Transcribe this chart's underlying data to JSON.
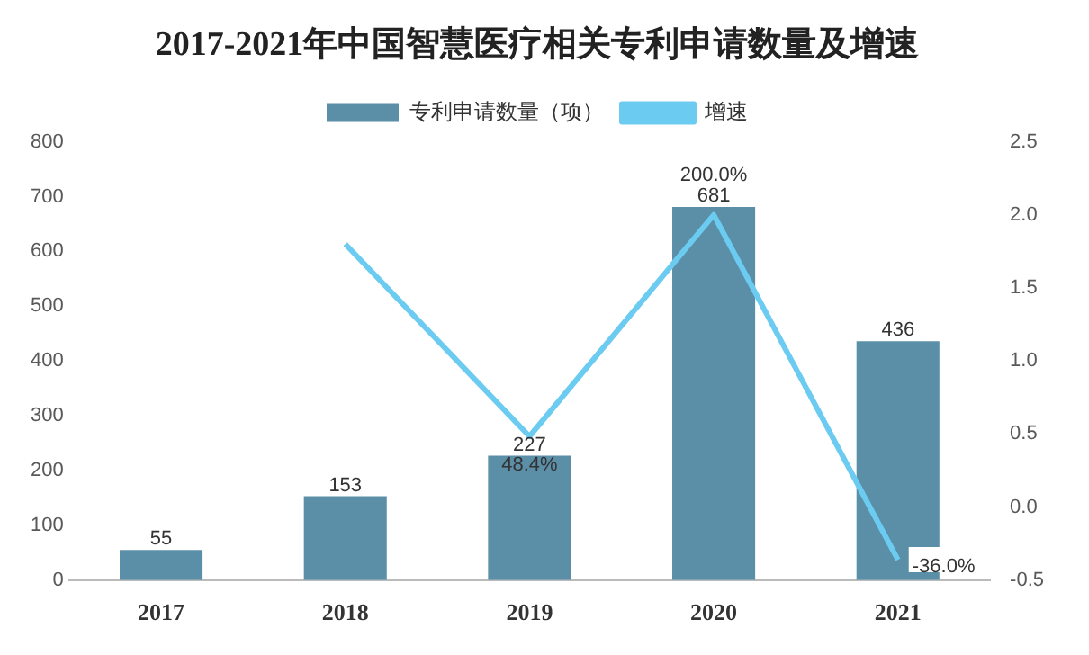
{
  "chart_data": {
    "type": "bar",
    "title": "2017-2021年中国智慧医疗相关专利申请数量及增速",
    "categories": [
      "2017",
      "2018",
      "2019",
      "2020",
      "2021"
    ],
    "series": [
      {
        "name": "专利申请数量（项）",
        "color": "#5b8fa8",
        "values": [
          55,
          153,
          227,
          681,
          436
        ],
        "data_labels": true
      },
      {
        "name": "增速",
        "type": "line",
        "axis": "y2",
        "color": "#6ccbf0",
        "values": [
          null,
          1.8,
          0.484,
          2.0,
          -0.36
        ],
        "value_labels": [
          null,
          null,
          "48.4%",
          "200.0%",
          "-36.0%"
        ]
      }
    ],
    "ylim": [
      0,
      800
    ],
    "yticks": [
      0,
      100,
      200,
      300,
      400,
      500,
      600,
      700,
      800
    ],
    "y2lim": [
      -0.5,
      2.5
    ],
    "y2ticks": [
      {
        "value": -0.5,
        "label": "-0.5"
      },
      {
        "value": 0,
        "label": "0.0"
      },
      {
        "value": 0.5,
        "label": "0.5"
      },
      {
        "value": 1,
        "label": "1.0"
      },
      {
        "value": 1.5,
        "label": "1.5"
      },
      {
        "value": 2,
        "label": "2.0"
      },
      {
        "value": 2.5,
        "label": "2.5"
      }
    ],
    "legend": "top",
    "grid": false,
    "marker": "none"
  }
}
